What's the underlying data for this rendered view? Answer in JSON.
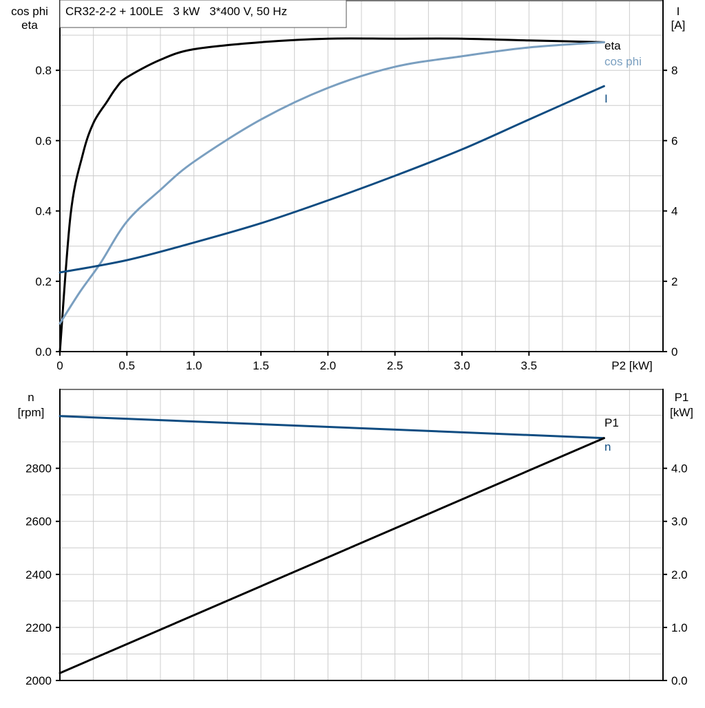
{
  "chart_data": [
    {
      "type": "line",
      "title": "CR32-2-2 + 100LE   3 kW   3*400 V, 50 Hz",
      "xlabel": "P2 [kW]",
      "ylabel_left": [
        "cos phi",
        "eta"
      ],
      "ylabel_right": [
        "I",
        "[A]"
      ],
      "xlim": [
        0,
        4.5
      ],
      "ylim_left": [
        0,
        1.0
      ],
      "ylim_right": [
        0,
        10
      ],
      "x_ticks": [
        "0",
        "0.5",
        "1.0",
        "1.5",
        "2.0",
        "2.5",
        "3.0",
        "3.5"
      ],
      "y_left_ticks": [
        "0.0",
        "0.2",
        "0.4",
        "0.6",
        "0.8"
      ],
      "y_right_ticks": [
        "0",
        "2",
        "4",
        "6",
        "8"
      ],
      "grid": true,
      "series": [
        {
          "name": "eta",
          "axis": "left",
          "color": "#000000",
          "x": [
            0,
            0.08,
            0.17,
            0.25,
            0.35,
            0.42,
            0.5,
            0.75,
            1.0,
            1.5,
            2.0,
            2.5,
            3.0,
            3.5,
            4.06
          ],
          "y": [
            0,
            0.39,
            0.56,
            0.65,
            0.71,
            0.75,
            0.78,
            0.83,
            0.86,
            0.88,
            0.89,
            0.89,
            0.89,
            0.885,
            0.88
          ]
        },
        {
          "name": "cos phi",
          "axis": "left",
          "color": "#7a9fc0",
          "x": [
            0,
            0.15,
            0.3,
            0.5,
            0.75,
            1.0,
            1.5,
            2.0,
            2.5,
            3.0,
            3.5,
            4.06
          ],
          "y": [
            0.08,
            0.17,
            0.25,
            0.37,
            0.46,
            0.54,
            0.66,
            0.75,
            0.81,
            0.84,
            0.865,
            0.88
          ]
        },
        {
          "name": "I",
          "axis": "right",
          "color": "#0f4c81",
          "x": [
            0,
            0.5,
            1.0,
            1.5,
            2.0,
            2.5,
            3.0,
            3.5,
            4.06
          ],
          "y": [
            2.25,
            2.6,
            3.1,
            3.65,
            4.3,
            5.0,
            5.75,
            6.6,
            7.55
          ]
        }
      ]
    },
    {
      "type": "line",
      "xlim": [
        0,
        4.5
      ],
      "ylabel_left": [
        "n",
        "[rpm]"
      ],
      "ylabel_right": [
        "P1",
        "[kW]"
      ],
      "ylim_left": [
        2000,
        3100
      ],
      "ylim_right": [
        0,
        5.5
      ],
      "y_left_ticks": [
        "2000",
        "2200",
        "2400",
        "2600",
        "2800"
      ],
      "y_right_ticks": [
        "0.0",
        "1.0",
        "2.0",
        "3.0",
        "4.0"
      ],
      "grid": true,
      "series": [
        {
          "name": "n",
          "axis": "left",
          "color": "#0f4c81",
          "x": [
            0,
            4.06
          ],
          "y": [
            2997,
            2914
          ]
        },
        {
          "name": "P1",
          "axis": "right",
          "color": "#000000",
          "x": [
            0,
            4.06
          ],
          "y": [
            0.14,
            4.57
          ]
        }
      ]
    }
  ]
}
